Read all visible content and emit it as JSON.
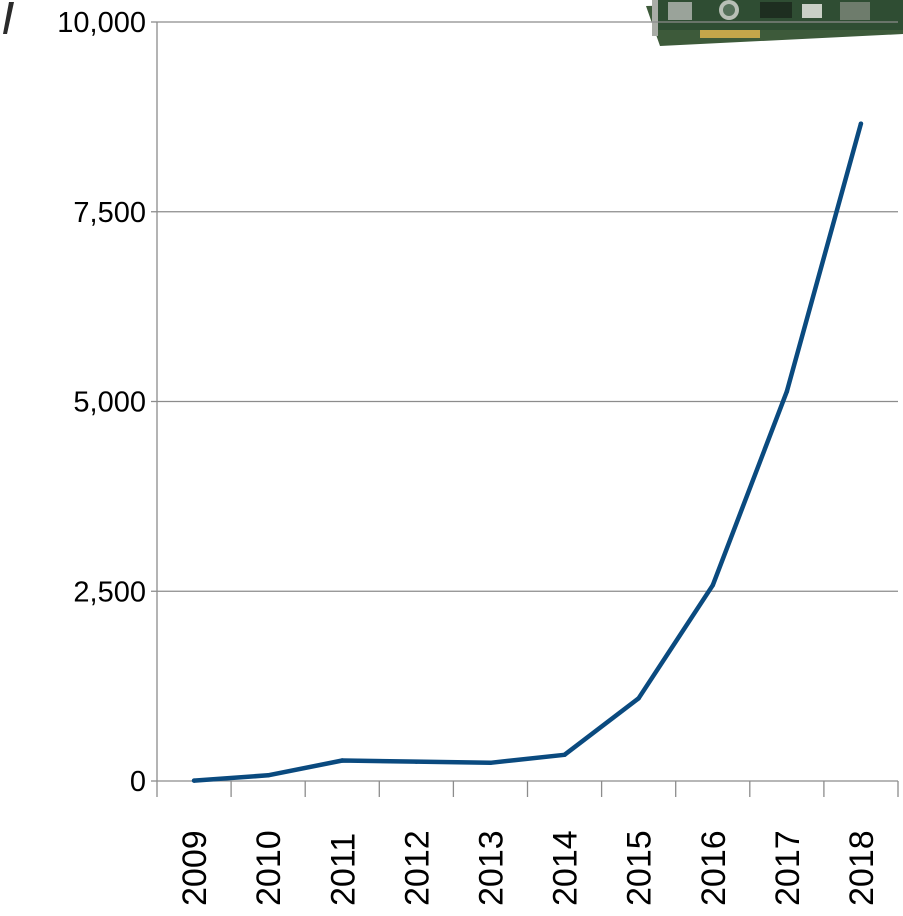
{
  "chart_data": {
    "type": "line",
    "title": "",
    "xlabel": "",
    "ylabel": "",
    "x": [
      "2009",
      "2010",
      "2011",
      "2012",
      "2013",
      "2014",
      "2015",
      "2016",
      "2017",
      "2018"
    ],
    "series": [
      {
        "values": [
          5,
          75,
          270,
          255,
          240,
          345,
          1090,
          2580,
          5130,
          8660
        ]
      }
    ],
    "ylim": [
      0,
      10000
    ],
    "yticks": [
      "0",
      "2,500",
      "5,000",
      "7,500",
      "10,000"
    ],
    "ytick_values": [
      0,
      2500,
      5000,
      7500,
      10000
    ],
    "grid": true,
    "legend": "none",
    "line_color": "#0a4a7f",
    "gridline_color": "#8c8c8c"
  },
  "decoration": {
    "picture": "gpu-card-image"
  }
}
